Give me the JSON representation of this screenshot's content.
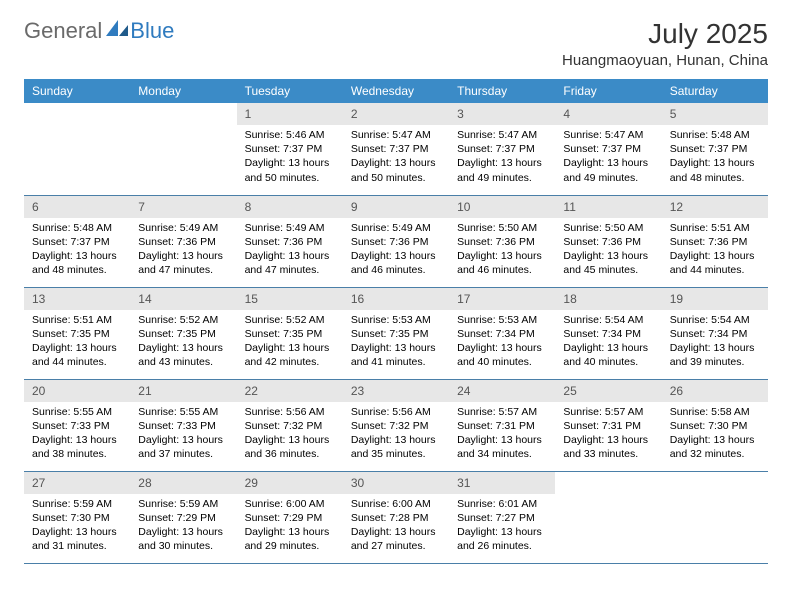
{
  "logo": {
    "general": "General",
    "blue": "Blue"
  },
  "title": {
    "month": "July 2025",
    "location": "Huangmaoyuan, Hunan, China"
  },
  "colors": {
    "header_bg": "#3b8bc7",
    "header_text": "#ffffff",
    "daynum_bg": "#e7e7e7",
    "row_border": "#4a7fa8",
    "logo_blue": "#2f7bbf",
    "logo_gray": "#6a6a6a"
  },
  "weekdays": [
    "Sunday",
    "Monday",
    "Tuesday",
    "Wednesday",
    "Thursday",
    "Friday",
    "Saturday"
  ],
  "weeks": [
    [
      null,
      null,
      {
        "d": "1",
        "sr": "5:46 AM",
        "ss": "7:37 PM",
        "dl": "13 hours and 50 minutes."
      },
      {
        "d": "2",
        "sr": "5:47 AM",
        "ss": "7:37 PM",
        "dl": "13 hours and 50 minutes."
      },
      {
        "d": "3",
        "sr": "5:47 AM",
        "ss": "7:37 PM",
        "dl": "13 hours and 49 minutes."
      },
      {
        "d": "4",
        "sr": "5:47 AM",
        "ss": "7:37 PM",
        "dl": "13 hours and 49 minutes."
      },
      {
        "d": "5",
        "sr": "5:48 AM",
        "ss": "7:37 PM",
        "dl": "13 hours and 48 minutes."
      }
    ],
    [
      {
        "d": "6",
        "sr": "5:48 AM",
        "ss": "7:37 PM",
        "dl": "13 hours and 48 minutes."
      },
      {
        "d": "7",
        "sr": "5:49 AM",
        "ss": "7:36 PM",
        "dl": "13 hours and 47 minutes."
      },
      {
        "d": "8",
        "sr": "5:49 AM",
        "ss": "7:36 PM",
        "dl": "13 hours and 47 minutes."
      },
      {
        "d": "9",
        "sr": "5:49 AM",
        "ss": "7:36 PM",
        "dl": "13 hours and 46 minutes."
      },
      {
        "d": "10",
        "sr": "5:50 AM",
        "ss": "7:36 PM",
        "dl": "13 hours and 46 minutes."
      },
      {
        "d": "11",
        "sr": "5:50 AM",
        "ss": "7:36 PM",
        "dl": "13 hours and 45 minutes."
      },
      {
        "d": "12",
        "sr": "5:51 AM",
        "ss": "7:36 PM",
        "dl": "13 hours and 44 minutes."
      }
    ],
    [
      {
        "d": "13",
        "sr": "5:51 AM",
        "ss": "7:35 PM",
        "dl": "13 hours and 44 minutes."
      },
      {
        "d": "14",
        "sr": "5:52 AM",
        "ss": "7:35 PM",
        "dl": "13 hours and 43 minutes."
      },
      {
        "d": "15",
        "sr": "5:52 AM",
        "ss": "7:35 PM",
        "dl": "13 hours and 42 minutes."
      },
      {
        "d": "16",
        "sr": "5:53 AM",
        "ss": "7:35 PM",
        "dl": "13 hours and 41 minutes."
      },
      {
        "d": "17",
        "sr": "5:53 AM",
        "ss": "7:34 PM",
        "dl": "13 hours and 40 minutes."
      },
      {
        "d": "18",
        "sr": "5:54 AM",
        "ss": "7:34 PM",
        "dl": "13 hours and 40 minutes."
      },
      {
        "d": "19",
        "sr": "5:54 AM",
        "ss": "7:34 PM",
        "dl": "13 hours and 39 minutes."
      }
    ],
    [
      {
        "d": "20",
        "sr": "5:55 AM",
        "ss": "7:33 PM",
        "dl": "13 hours and 38 minutes."
      },
      {
        "d": "21",
        "sr": "5:55 AM",
        "ss": "7:33 PM",
        "dl": "13 hours and 37 minutes."
      },
      {
        "d": "22",
        "sr": "5:56 AM",
        "ss": "7:32 PM",
        "dl": "13 hours and 36 minutes."
      },
      {
        "d": "23",
        "sr": "5:56 AM",
        "ss": "7:32 PM",
        "dl": "13 hours and 35 minutes."
      },
      {
        "d": "24",
        "sr": "5:57 AM",
        "ss": "7:31 PM",
        "dl": "13 hours and 34 minutes."
      },
      {
        "d": "25",
        "sr": "5:57 AM",
        "ss": "7:31 PM",
        "dl": "13 hours and 33 minutes."
      },
      {
        "d": "26",
        "sr": "5:58 AM",
        "ss": "7:30 PM",
        "dl": "13 hours and 32 minutes."
      }
    ],
    [
      {
        "d": "27",
        "sr": "5:59 AM",
        "ss": "7:30 PM",
        "dl": "13 hours and 31 minutes."
      },
      {
        "d": "28",
        "sr": "5:59 AM",
        "ss": "7:29 PM",
        "dl": "13 hours and 30 minutes."
      },
      {
        "d": "29",
        "sr": "6:00 AM",
        "ss": "7:29 PM",
        "dl": "13 hours and 29 minutes."
      },
      {
        "d": "30",
        "sr": "6:00 AM",
        "ss": "7:28 PM",
        "dl": "13 hours and 27 minutes."
      },
      {
        "d": "31",
        "sr": "6:01 AM",
        "ss": "7:27 PM",
        "dl": "13 hours and 26 minutes."
      },
      null,
      null
    ]
  ],
  "labels": {
    "sunrise": "Sunrise: ",
    "sunset": "Sunset: ",
    "daylight": "Daylight: "
  }
}
